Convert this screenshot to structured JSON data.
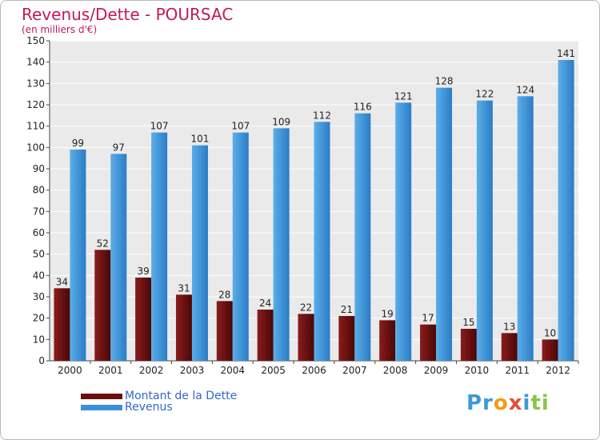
{
  "chart_data": {
    "type": "bar",
    "title": "Revenus/Dette - POURSAC",
    "subtitle": "(en milliers d'€)",
    "categories": [
      "2000",
      "2001",
      "2002",
      "2003",
      "2004",
      "2005",
      "2006",
      "2007",
      "2008",
      "2009",
      "2010",
      "2011",
      "2012"
    ],
    "series": [
      {
        "name": "Montant de la Dette",
        "color": "#6b0d0d",
        "values": [
          34,
          52,
          39,
          31,
          28,
          24,
          22,
          21,
          19,
          17,
          15,
          13,
          10
        ]
      },
      {
        "name": "Revenus",
        "color": "#3d8fdb",
        "values": [
          99,
          97,
          107,
          101,
          107,
          109,
          112,
          116,
          121,
          128,
          122,
          124,
          141
        ]
      }
    ],
    "yticks": [
      0,
      10,
      20,
      30,
      40,
      50,
      60,
      70,
      80,
      90,
      100,
      110,
      120,
      130,
      140,
      150
    ],
    "ylim": [
      0,
      150
    ],
    "grid": true,
    "legend": "bottom-left"
  },
  "brand": {
    "parts": [
      "Pr",
      "o",
      "x",
      "i",
      "ti"
    ],
    "colors": [
      "#3a9ad9",
      "#f39c12",
      "#e74c3c",
      "#3a9ad9",
      "#8bc34a"
    ]
  }
}
